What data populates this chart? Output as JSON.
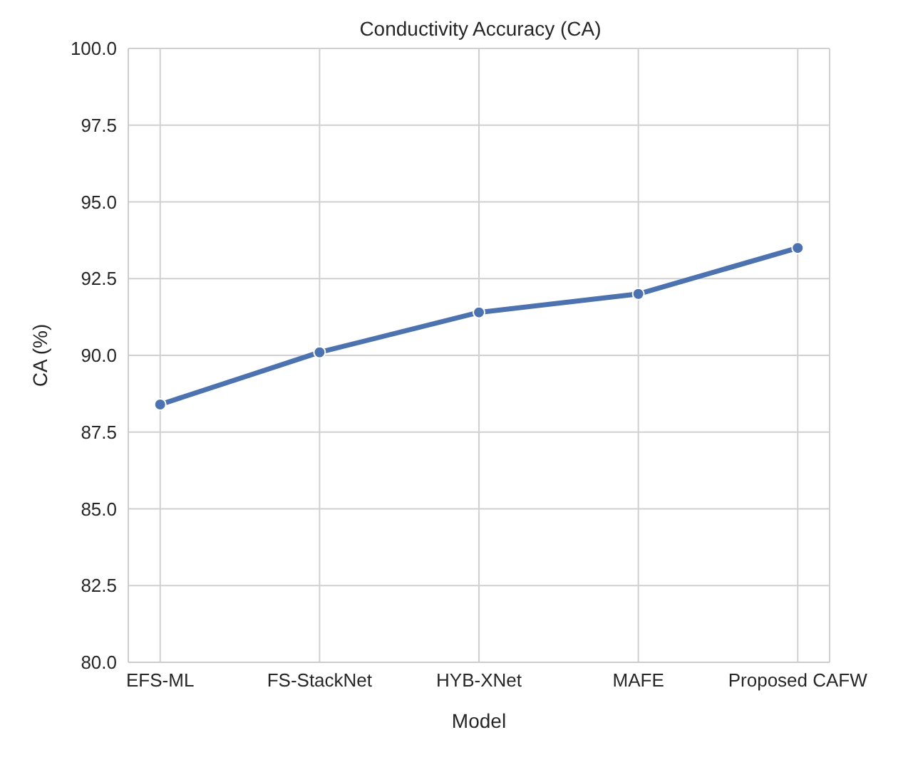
{
  "chart_data": {
    "type": "line",
    "title": "Conductivity Accuracy (CA)",
    "xlabel": "Model",
    "ylabel": "CA (%)",
    "categories": [
      "EFS-ML",
      "FS-StackNet",
      "HYB-XNet",
      "MAFE",
      "Proposed CAFW"
    ],
    "series": [
      {
        "color": "#4c72b0",
        "values": [
          88.4,
          90.1,
          91.4,
          92.0,
          93.5
        ]
      }
    ],
    "ylim": [
      80,
      100
    ],
    "yticks": [
      {
        "value": 80,
        "label": "80.0"
      },
      {
        "value": 82.5,
        "label": "82.5"
      },
      {
        "value": 85,
        "label": "85.0"
      },
      {
        "value": 87.5,
        "label": "87.5"
      },
      {
        "value": 90,
        "label": "90.0"
      },
      {
        "value": 92.5,
        "label": "92.5"
      },
      {
        "value": 95,
        "label": "95.0"
      },
      {
        "value": 97.5,
        "label": "97.5"
      },
      {
        "value": 100,
        "label": "100.0"
      }
    ],
    "grid": true,
    "marker": "circle",
    "line_style": "solid"
  }
}
